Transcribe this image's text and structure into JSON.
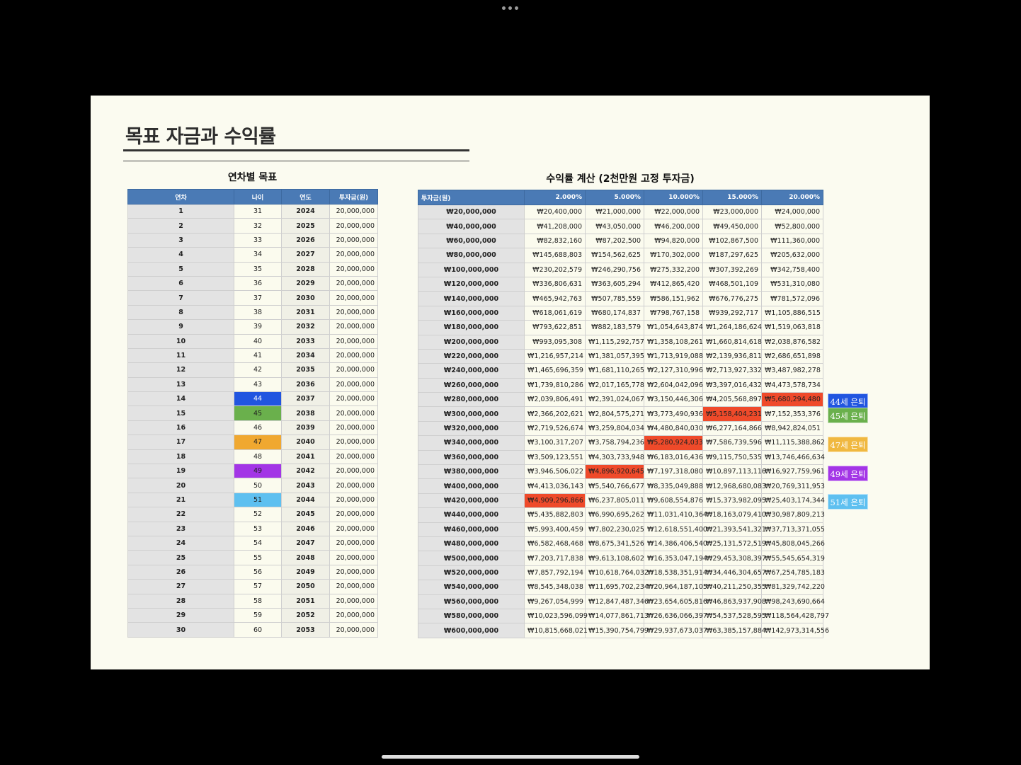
{
  "page_title": "목표 자금과 수익률",
  "left_table": {
    "caption": "연차별 목표",
    "headers": [
      "연차",
      "나이",
      "연도",
      "투자금(원)"
    ],
    "rows": [
      [
        "1",
        "31",
        "2024",
        "20,000,000"
      ],
      [
        "2",
        "32",
        "2025",
        "20,000,000"
      ],
      [
        "3",
        "33",
        "2026",
        "20,000,000"
      ],
      [
        "4",
        "34",
        "2027",
        "20,000,000"
      ],
      [
        "5",
        "35",
        "2028",
        "20,000,000"
      ],
      [
        "6",
        "36",
        "2029",
        "20,000,000"
      ],
      [
        "7",
        "37",
        "2030",
        "20,000,000"
      ],
      [
        "8",
        "38",
        "2031",
        "20,000,000"
      ],
      [
        "9",
        "39",
        "2032",
        "20,000,000"
      ],
      [
        "10",
        "40",
        "2033",
        "20,000,000"
      ],
      [
        "11",
        "41",
        "2034",
        "20,000,000"
      ],
      [
        "12",
        "42",
        "2035",
        "20,000,000"
      ],
      [
        "13",
        "43",
        "2036",
        "20,000,000"
      ],
      [
        "14",
        "44",
        "2037",
        "20,000,000"
      ],
      [
        "15",
        "45",
        "2038",
        "20,000,000"
      ],
      [
        "16",
        "46",
        "2039",
        "20,000,000"
      ],
      [
        "17",
        "47",
        "2040",
        "20,000,000"
      ],
      [
        "18",
        "48",
        "2041",
        "20,000,000"
      ],
      [
        "19",
        "49",
        "2042",
        "20,000,000"
      ],
      [
        "20",
        "50",
        "2043",
        "20,000,000"
      ],
      [
        "21",
        "51",
        "2044",
        "20,000,000"
      ],
      [
        "22",
        "52",
        "2045",
        "20,000,000"
      ],
      [
        "23",
        "53",
        "2046",
        "20,000,000"
      ],
      [
        "24",
        "54",
        "2047",
        "20,000,000"
      ],
      [
        "25",
        "55",
        "2048",
        "20,000,000"
      ],
      [
        "26",
        "56",
        "2049",
        "20,000,000"
      ],
      [
        "27",
        "57",
        "2050",
        "20,000,000"
      ],
      [
        "28",
        "58",
        "2051",
        "20,000,000"
      ],
      [
        "29",
        "59",
        "2052",
        "20,000,000"
      ],
      [
        "30",
        "60",
        "2053",
        "20,000,000"
      ]
    ],
    "age_highlights": {
      "13": "#2155e0",
      "14": "#6ab04c",
      "16": "#f0a830",
      "18": "#a335e6",
      "20": "#5ec0f0"
    }
  },
  "right_table": {
    "caption": "수익률 계산 (2천만원 고정 투자금)",
    "headers": [
      "투자금(원)",
      "2.000%",
      "5.000%",
      "10.000%",
      "15.000%",
      "20.000%"
    ],
    "rows": [
      [
        "₩20,000,000",
        "₩20,400,000",
        "₩21,000,000",
        "₩22,000,000",
        "₩23,000,000",
        "₩24,000,000"
      ],
      [
        "₩40,000,000",
        "₩41,208,000",
        "₩43,050,000",
        "₩46,200,000",
        "₩49,450,000",
        "₩52,800,000"
      ],
      [
        "₩60,000,000",
        "₩82,832,160",
        "₩87,202,500",
        "₩94,820,000",
        "₩102,867,500",
        "₩111,360,000"
      ],
      [
        "₩80,000,000",
        "₩145,688,803",
        "₩154,562,625",
        "₩170,302,000",
        "₩187,297,625",
        "₩205,632,000"
      ],
      [
        "₩100,000,000",
        "₩230,202,579",
        "₩246,290,756",
        "₩275,332,200",
        "₩307,392,269",
        "₩342,758,400"
      ],
      [
        "₩120,000,000",
        "₩336,806,631",
        "₩363,605,294",
        "₩412,865,420",
        "₩468,501,109",
        "₩531,310,080"
      ],
      [
        "₩140,000,000",
        "₩465,942,763",
        "₩507,785,559",
        "₩586,151,962",
        "₩676,776,275",
        "₩781,572,096"
      ],
      [
        "₩160,000,000",
        "₩618,061,619",
        "₩680,174,837",
        "₩798,767,158",
        "₩939,292,717",
        "₩1,105,886,515"
      ],
      [
        "₩180,000,000",
        "₩793,622,851",
        "₩882,183,579",
        "₩1,054,643,874",
        "₩1,264,186,624",
        "₩1,519,063,818"
      ],
      [
        "₩200,000,000",
        "₩993,095,308",
        "₩1,115,292,757",
        "₩1,358,108,261",
        "₩1,660,814,618",
        "₩2,038,876,582"
      ],
      [
        "₩220,000,000",
        "₩1,216,957,214",
        "₩1,381,057,395",
        "₩1,713,919,088",
        "₩2,139,936,811",
        "₩2,686,651,898"
      ],
      [
        "₩240,000,000",
        "₩1,465,696,359",
        "₩1,681,110,265",
        "₩2,127,310,996",
        "₩2,713,927,332",
        "₩3,487,982,278"
      ],
      [
        "₩260,000,000",
        "₩1,739,810,286",
        "₩2,017,165,778",
        "₩2,604,042,096",
        "₩3,397,016,432",
        "₩4,473,578,734"
      ],
      [
        "₩280,000,000",
        "₩2,039,806,491",
        "₩2,391,024,067",
        "₩3,150,446,306",
        "₩4,205,568,897",
        "₩5,680,294,480"
      ],
      [
        "₩300,000,000",
        "₩2,366,202,621",
        "₩2,804,575,271",
        "₩3,773,490,936",
        "₩5,158,404,231",
        "₩7,152,353,376"
      ],
      [
        "₩320,000,000",
        "₩2,719,526,674",
        "₩3,259,804,034",
        "₩4,480,840,030",
        "₩6,277,164,866",
        "₩8,942,824,051"
      ],
      [
        "₩340,000,000",
        "₩3,100,317,207",
        "₩3,758,794,236",
        "₩5,280,924,033",
        "₩7,586,739,596",
        "₩11,115,388,862"
      ],
      [
        "₩360,000,000",
        "₩3,509,123,551",
        "₩4,303,733,948",
        "₩6,183,016,436",
        "₩9,115,750,535",
        "₩13,746,466,634"
      ],
      [
        "₩380,000,000",
        "₩3,946,506,022",
        "₩4,896,920,645",
        "₩7,197,318,080",
        "₩10,897,113,116",
        "₩16,927,759,961"
      ],
      [
        "₩400,000,000",
        "₩4,413,036,143",
        "₩5,540,766,677",
        "₩8,335,049,888",
        "₩12,968,680,083",
        "₩20,769,311,953"
      ],
      [
        "₩420,000,000",
        "₩4,909,296,866",
        "₩6,237,805,011",
        "₩9,608,554,876",
        "₩15,373,982,095",
        "₩25,403,174,344"
      ],
      [
        "₩440,000,000",
        "₩5,435,882,803",
        "₩6,990,695,262",
        "₩11,031,410,364",
        "₩18,163,079,410",
        "₩30,987,809,213"
      ],
      [
        "₩460,000,000",
        "₩5,993,400,459",
        "₩7,802,230,025",
        "₩12,618,551,400",
        "₩21,393,541,321",
        "₩37,713,371,055"
      ],
      [
        "₩480,000,000",
        "₩6,582,468,468",
        "₩8,675,341,526",
        "₩14,386,406,540",
        "₩25,131,572,519",
        "₩45,808,045,266"
      ],
      [
        "₩500,000,000",
        "₩7,203,717,838",
        "₩9,613,108,602",
        "₩16,353,047,194",
        "₩29,453,308,397",
        "₩55,545,654,319"
      ],
      [
        "₩520,000,000",
        "₩7,857,792,194",
        "₩10,618,764,032",
        "₩18,538,351,914",
        "₩34,446,304,657",
        "₩67,254,785,183"
      ],
      [
        "₩540,000,000",
        "₩8,545,348,038",
        "₩11,695,702,234",
        "₩20,964,187,105",
        "₩40,211,250,355",
        "₩81,329,742,220"
      ],
      [
        "₩560,000,000",
        "₩9,267,054,999",
        "₩12,847,487,346",
        "₩23,654,605,816",
        "₩46,863,937,908",
        "₩98,243,690,664"
      ],
      [
        "₩580,000,000",
        "₩10,023,596,099",
        "₩14,077,861,713",
        "₩26,636,066,397",
        "₩54,537,528,595",
        "₩118,564,428,797"
      ],
      [
        "₩600,000,000",
        "₩10,815,668,021",
        "₩15,390,754,799",
        "₩29,937,673,037",
        "₩63,385,157,884",
        "₩142,973,314,556"
      ]
    ],
    "highlights": [
      {
        "row": 13,
        "col": 5,
        "color": "#ef4a2a"
      },
      {
        "row": 14,
        "col": 4,
        "color": "#ef4a2a"
      },
      {
        "row": 16,
        "col": 3,
        "color": "#ef4a2a"
      },
      {
        "row": 18,
        "col": 2,
        "color": "#ef4a2a"
      },
      {
        "row": 20,
        "col": 1,
        "color": "#ef4a2a"
      }
    ]
  },
  "legend": [
    {
      "label": "44세 은퇴",
      "color": "#2155e0",
      "row": 13
    },
    {
      "label": "45세 은퇴",
      "color": "#6ab04c",
      "row": 14
    },
    {
      "label": "47세 은퇴",
      "color": "#f0b840",
      "row": 16
    },
    {
      "label": "49세 은퇴",
      "color": "#a335e6",
      "row": 18
    },
    {
      "label": "51세 은퇴",
      "color": "#5ec0f0",
      "row": 20
    }
  ]
}
